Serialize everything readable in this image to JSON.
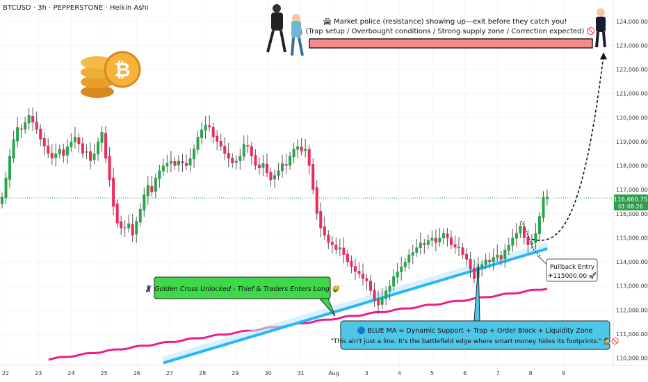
{
  "header": {
    "title": "BTCUSD · 3h · PEPPERSTONE · Heikin Ashi"
  },
  "price_badge": {
    "price": "116,660.75",
    "countdown": "01:08:26"
  },
  "annotations": {
    "police_line1": "🚔 Market police (resistance) showing up—exit before they catch you!",
    "police_line2": "🚨 (Trap setup / Overbought conditions / Strong supply zone / Correction expected) 🚫",
    "golden_cross": "🦹 Golden Cross Unlocked - Thief & Traders Enters Long 🤑",
    "blue_ma_line1": "🔵 BLUE MA = Dynamic Support + Trap + Order Block + Liquidity Zone",
    "blue_ma_line2": "\"This ain't just a line. It's the battlefield edge where smart money hides its footprints.\" 🕵️🚫",
    "pullback_line1": "Pullback Entry",
    "pullback_line2": "✈115000.00 🚀"
  },
  "colors": {
    "up": "#27a64a",
    "down": "#ef2a5c",
    "blue_ma": "#29b6f6",
    "pink_ma": "#e91e8c",
    "price_line": "#2e9d4b",
    "resistance_fill": "#f48a8a",
    "green_note": "#3fd84a",
    "blue_note": "#4fc6e8"
  },
  "chart_data": {
    "type": "candlestick",
    "symbol": "BTCUSD",
    "timeframe": "3h",
    "y_ticks": [
      110000,
      111000,
      112000,
      113000,
      114000,
      115000,
      116000,
      117000,
      118000,
      119000,
      120000,
      121000,
      122000,
      123000,
      124000
    ],
    "y_tick_labels": [
      "110,000.00",
      "111,000.00",
      "112,000.00",
      "113,000.00",
      "114,000.00",
      "115,000.00",
      "116,000.00",
      "117,000.00",
      "118,000.00",
      "119,000.00",
      "120,000.00",
      "121,000.00",
      "122,000.00",
      "123,000.00",
      "124,000.00"
    ],
    "ylim": [
      109700,
      124600
    ],
    "x_labels": [
      "22",
      "23",
      "24",
      "25",
      "26",
      "27",
      "28",
      "29",
      "30",
      "31",
      "Aug",
      "3",
      "4",
      "5",
      "6",
      "7",
      "8",
      "9"
    ],
    "current_price": 116660.75,
    "resistance_zone": [
      123000,
      123400
    ],
    "pullback_entry": 115000,
    "closes": [
      116700,
      117500,
      118400,
      119100,
      119600,
      119500,
      119800,
      120100,
      119800,
      119500,
      119100,
      118800,
      118500,
      118300,
      118500,
      118700,
      118400,
      118800,
      119000,
      119200,
      118900,
      118500,
      118600,
      118200,
      118500,
      119000,
      119400,
      118300,
      117400,
      116300,
      115600,
      115400,
      115400,
      115600,
      115100,
      115700,
      116200,
      116800,
      117200,
      116900,
      117500,
      117800,
      118000,
      118100,
      118200,
      118000,
      118200,
      118100,
      118000,
      118300,
      118700,
      119200,
      119500,
      119700,
      119600,
      119200,
      119000,
      118800,
      118500,
      118300,
      118100,
      118200,
      118400,
      118900,
      118800,
      118400,
      118000,
      117900,
      118100,
      117700,
      117400,
      117600,
      117800,
      118100,
      118000,
      118400,
      118700,
      118800,
      118600,
      118700,
      118000,
      117000,
      116000,
      115400,
      115100,
      114800,
      114700,
      114500,
      114600,
      114300,
      114000,
      113800,
      113600,
      113500,
      113300,
      113200,
      112800,
      112400,
      112200,
      112500,
      112800,
      113000,
      113400,
      113600,
      113800,
      114000,
      114300,
      114400,
      114600,
      114800,
      114700,
      114900,
      115000,
      114800,
      115000,
      115200,
      115000,
      114700,
      114600,
      114600,
      114300,
      114100,
      113700,
      113300,
      113800,
      113900,
      114100,
      114000,
      114200,
      114300,
      114100,
      114500,
      114700,
      115000,
      115200,
      115500,
      115000,
      114700,
      114800,
      115200,
      115900,
      116700,
      116700
    ]
  }
}
